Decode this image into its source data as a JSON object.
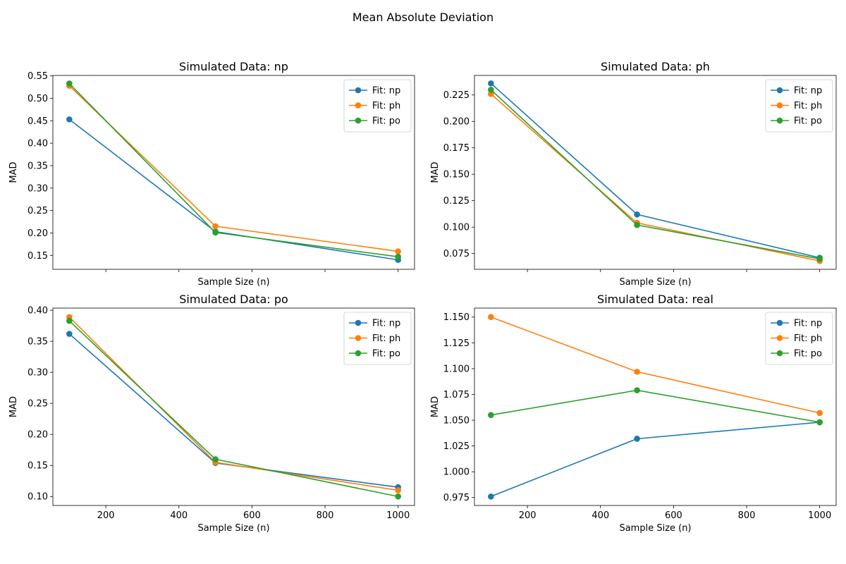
{
  "figure": {
    "suptitle": "Mean Absolute Deviation"
  },
  "chart_data": [
    {
      "type": "line",
      "title": "Simulated Data: np",
      "xlabel": "Sample Size (n)",
      "ylabel": "MAD",
      "x": [
        100,
        500,
        1000
      ],
      "xlim": [
        55,
        1045
      ],
      "ylim": [
        0.119,
        0.551
      ],
      "xticks": [
        200,
        400,
        600,
        800,
        1000
      ],
      "xtick_labels_visible": false,
      "yticks": [
        0.15,
        0.2,
        0.25,
        0.3,
        0.35,
        0.4,
        0.45,
        0.5,
        0.55
      ],
      "ytick_labels": [
        "0.15",
        "0.20",
        "0.25",
        "0.30",
        "0.35",
        "0.40",
        "0.45",
        "0.50",
        "0.55"
      ],
      "legend_position": "upper right",
      "series": [
        {
          "name": "Fit: np",
          "color": "#1f77b4",
          "values": [
            0.453,
            0.203,
            0.14
          ]
        },
        {
          "name": "Fit: ph",
          "color": "#ff7f0e",
          "values": [
            0.528,
            0.215,
            0.159
          ]
        },
        {
          "name": "Fit: po",
          "color": "#2ca02c",
          "values": [
            0.533,
            0.201,
            0.147
          ]
        }
      ]
    },
    {
      "type": "line",
      "title": "Simulated Data: ph",
      "xlabel": "Sample Size (n)",
      "ylabel": "MAD",
      "x": [
        100,
        500,
        1000
      ],
      "xlim": [
        55,
        1045
      ],
      "ylim": [
        0.0601,
        0.2435
      ],
      "xticks": [
        200,
        400,
        600,
        800,
        1000
      ],
      "xtick_labels_visible": false,
      "yticks": [
        0.075,
        0.1,
        0.125,
        0.15,
        0.175,
        0.2,
        0.225
      ],
      "ytick_labels": [
        "0.075",
        "0.100",
        "0.125",
        "0.150",
        "0.175",
        "0.200",
        "0.225"
      ],
      "legend_position": "upper right",
      "series": [
        {
          "name": "Fit: np",
          "color": "#1f77b4",
          "values": [
            0.236,
            0.112,
            0.071
          ]
        },
        {
          "name": "Fit: ph",
          "color": "#ff7f0e",
          "values": [
            0.226,
            0.104,
            0.068
          ]
        },
        {
          "name": "Fit: po",
          "color": "#2ca02c",
          "values": [
            0.23,
            0.102,
            0.07
          ]
        }
      ]
    },
    {
      "type": "line",
      "title": "Simulated Data: po",
      "xlabel": "Sample Size (n)",
      "ylabel": "MAD",
      "x": [
        100,
        500,
        1000
      ],
      "xlim": [
        55,
        1045
      ],
      "ylim": [
        0.0855,
        0.4035
      ],
      "xticks": [
        200,
        400,
        600,
        800,
        1000
      ],
      "xtick_labels": [
        "200",
        "400",
        "600",
        "800",
        "1000"
      ],
      "xtick_labels_visible": true,
      "yticks": [
        0.1,
        0.15,
        0.2,
        0.25,
        0.3,
        0.35,
        0.4
      ],
      "ytick_labels": [
        "0.10",
        "0.15",
        "0.20",
        "0.25",
        "0.30",
        "0.35",
        "0.40"
      ],
      "legend_position": "upper right",
      "series": [
        {
          "name": "Fit: np",
          "color": "#1f77b4",
          "values": [
            0.362,
            0.154,
            0.115
          ]
        },
        {
          "name": "Fit: ph",
          "color": "#ff7f0e",
          "values": [
            0.389,
            0.155,
            0.11
          ]
        },
        {
          "name": "Fit: po",
          "color": "#2ca02c",
          "values": [
            0.383,
            0.16,
            0.1
          ]
        }
      ]
    },
    {
      "type": "line",
      "title": "Simulated Data: real",
      "xlabel": "Sample Size (n)",
      "ylabel": "MAD",
      "x": [
        100,
        500,
        1000
      ],
      "xlim": [
        55,
        1045
      ],
      "ylim": [
        0.9673,
        1.1587
      ],
      "xticks": [
        200,
        400,
        600,
        800,
        1000
      ],
      "xtick_labels": [
        "200",
        "400",
        "600",
        "800",
        "1000"
      ],
      "xtick_labels_visible": true,
      "yticks": [
        0.975,
        1.0,
        1.025,
        1.05,
        1.075,
        1.1,
        1.125,
        1.15
      ],
      "ytick_labels": [
        "0.975",
        "1.000",
        "1.025",
        "1.050",
        "1.075",
        "1.100",
        "1.125",
        "1.150"
      ],
      "legend_position": "upper right",
      "series": [
        {
          "name": "Fit: np",
          "color": "#1f77b4",
          "values": [
            0.976,
            1.032,
            1.048
          ]
        },
        {
          "name": "Fit: ph",
          "color": "#ff7f0e",
          "values": [
            1.15,
            1.097,
            1.057
          ]
        },
        {
          "name": "Fit: po",
          "color": "#2ca02c",
          "values": [
            1.055,
            1.079,
            1.048
          ]
        }
      ]
    }
  ]
}
